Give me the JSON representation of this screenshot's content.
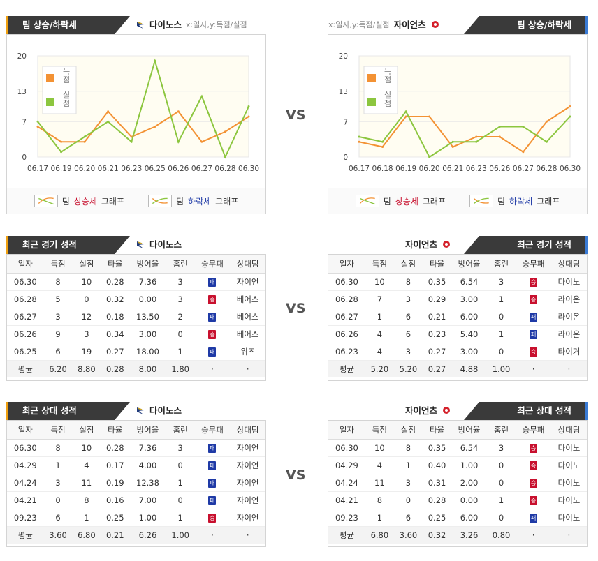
{
  "colors": {
    "score_line": "#f39234",
    "allowed_line": "#8cc63f",
    "up_text": "#c8102e",
    "down_text": "#1f3aa6"
  },
  "vs_label": "VS",
  "trend": {
    "title": "팀 상승/하락세",
    "note": "x:일자,y:득점/실점",
    "legend_score": "득점",
    "legend_allowed": "실점",
    "footer": {
      "team": "팀",
      "up": "상승세",
      "down": "하락세",
      "graph": "그래프"
    }
  },
  "home": {
    "team": "다이노스",
    "logo": "dinos-logo-icon"
  },
  "away": {
    "team": "자이언츠",
    "logo": "giants-logo-icon"
  },
  "chart_data": [
    {
      "type": "line",
      "categories": [
        "06.17",
        "06.19",
        "06.20",
        "06.21",
        "06.23",
        "06.25",
        "06.26",
        "06.27",
        "06.28",
        "06.30"
      ],
      "yticks": [
        0,
        7,
        13,
        20
      ],
      "ylim": [
        0,
        20
      ],
      "series": [
        {
          "name": "득점",
          "values": [
            6,
            3,
            3,
            9,
            4,
            6,
            9,
            3,
            5,
            8
          ]
        },
        {
          "name": "실점",
          "values": [
            7,
            1,
            4,
            7,
            3,
            19,
            3,
            12,
            0,
            10
          ]
        }
      ]
    },
    {
      "type": "line",
      "categories": [
        "06.17",
        "06.18",
        "06.19",
        "06.20",
        "06.21",
        "06.23",
        "06.26",
        "06.27",
        "06.28",
        "06.30"
      ],
      "yticks": [
        0,
        7,
        13,
        20
      ],
      "ylim": [
        0,
        20
      ],
      "series": [
        {
          "name": "득점",
          "values": [
            3,
            2,
            8,
            8,
            2,
            4,
            4,
            1,
            7,
            10
          ]
        },
        {
          "name": "실점",
          "values": [
            4,
            3,
            9,
            0,
            3,
            3,
            6,
            6,
            3,
            8
          ]
        }
      ]
    }
  ],
  "recent": {
    "title": "최근 경기 성적",
    "headers": [
      "일자",
      "득점",
      "실점",
      "타율",
      "방어율",
      "홈런",
      "승무패",
      "상대팀"
    ],
    "home_rows": [
      [
        "06.30",
        "8",
        "10",
        "0.28",
        "7.36",
        "3",
        "패",
        "자이언"
      ],
      [
        "06.28",
        "5",
        "0",
        "0.32",
        "0.00",
        "3",
        "승",
        "베어스"
      ],
      [
        "06.27",
        "3",
        "12",
        "0.18",
        "13.50",
        "2",
        "패",
        "베어스"
      ],
      [
        "06.26",
        "9",
        "3",
        "0.34",
        "3.00",
        "0",
        "승",
        "베어스"
      ],
      [
        "06.25",
        "6",
        "19",
        "0.27",
        "18.00",
        "1",
        "패",
        "위즈"
      ]
    ],
    "home_avg": [
      "평균",
      "6.20",
      "8.80",
      "0.28",
      "8.00",
      "1.80",
      "·",
      "·"
    ],
    "away_rows": [
      [
        "06.30",
        "10",
        "8",
        "0.35",
        "6.54",
        "3",
        "승",
        "다이노"
      ],
      [
        "06.28",
        "7",
        "3",
        "0.29",
        "3.00",
        "1",
        "승",
        "라이온"
      ],
      [
        "06.27",
        "1",
        "6",
        "0.21",
        "6.00",
        "0",
        "패",
        "라이온"
      ],
      [
        "06.26",
        "4",
        "6",
        "0.23",
        "5.40",
        "1",
        "패",
        "라이온"
      ],
      [
        "06.23",
        "4",
        "3",
        "0.27",
        "3.00",
        "0",
        "승",
        "타이거"
      ]
    ],
    "away_avg": [
      "평균",
      "5.20",
      "5.20",
      "0.27",
      "4.88",
      "1.00",
      "·",
      "·"
    ]
  },
  "h2h": {
    "title": "최근 상대 성적",
    "headers": [
      "일자",
      "득점",
      "실점",
      "타율",
      "방어율",
      "홈런",
      "승무패",
      "상대팀"
    ],
    "home_rows": [
      [
        "06.30",
        "8",
        "10",
        "0.28",
        "7.36",
        "3",
        "패",
        "자이언"
      ],
      [
        "04.29",
        "1",
        "4",
        "0.17",
        "4.00",
        "0",
        "패",
        "자이언"
      ],
      [
        "04.24",
        "3",
        "11",
        "0.19",
        "12.38",
        "1",
        "패",
        "자이언"
      ],
      [
        "04.21",
        "0",
        "8",
        "0.16",
        "7.00",
        "0",
        "패",
        "자이언"
      ],
      [
        "09.23",
        "6",
        "1",
        "0.25",
        "1.00",
        "1",
        "승",
        "자이언"
      ]
    ],
    "home_avg": [
      "평균",
      "3.60",
      "6.80",
      "0.21",
      "6.26",
      "1.00",
      "·",
      "·"
    ],
    "away_rows": [
      [
        "06.30",
        "10",
        "8",
        "0.35",
        "6.54",
        "3",
        "승",
        "다이노"
      ],
      [
        "04.29",
        "4",
        "1",
        "0.40",
        "1.00",
        "0",
        "승",
        "다이노"
      ],
      [
        "04.24",
        "11",
        "3",
        "0.31",
        "2.00",
        "0",
        "승",
        "다이노"
      ],
      [
        "04.21",
        "8",
        "0",
        "0.28",
        "0.00",
        "1",
        "승",
        "다이노"
      ],
      [
        "09.23",
        "1",
        "6",
        "0.25",
        "6.00",
        "0",
        "패",
        "다이노"
      ]
    ],
    "away_avg": [
      "평균",
      "6.80",
      "3.60",
      "0.32",
      "3.26",
      "0.80",
      "·",
      "·"
    ]
  }
}
